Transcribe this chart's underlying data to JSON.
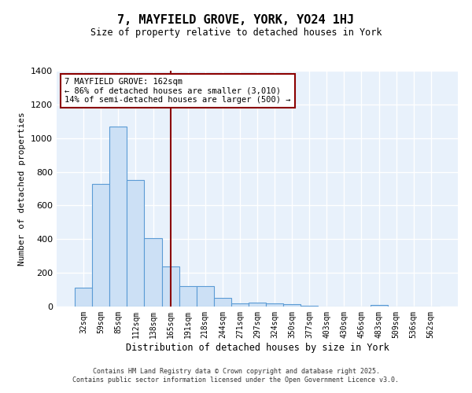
{
  "title": "7, MAYFIELD GROVE, YORK, YO24 1HJ",
  "subtitle": "Size of property relative to detached houses in York",
  "xlabel": "Distribution of detached houses by size in York",
  "ylabel": "Number of detached properties",
  "categories": [
    "32sqm",
    "59sqm",
    "85sqm",
    "112sqm",
    "138sqm",
    "165sqm",
    "191sqm",
    "218sqm",
    "244sqm",
    "271sqm",
    "297sqm",
    "324sqm",
    "350sqm",
    "377sqm",
    "403sqm",
    "430sqm",
    "456sqm",
    "483sqm",
    "509sqm",
    "536sqm",
    "562sqm"
  ],
  "values": [
    110,
    730,
    1070,
    750,
    405,
    240,
    120,
    120,
    50,
    20,
    25,
    20,
    15,
    5,
    0,
    0,
    0,
    10,
    0,
    0,
    0
  ],
  "bar_color": "#cce0f5",
  "bar_edge_color": "#5b9bd5",
  "vline_x_index": 5,
  "vline_color": "#8b0000",
  "annotation_text": "7 MAYFIELD GROVE: 162sqm\n← 86% of detached houses are smaller (3,010)\n14% of semi-detached houses are larger (500) →",
  "annotation_box_color": "white",
  "annotation_box_edge_color": "#8b0000",
  "ylim": [
    0,
    1400
  ],
  "yticks": [
    0,
    200,
    400,
    600,
    800,
    1000,
    1200,
    1400
  ],
  "background_color": "#e8f1fb",
  "grid_color": "white",
  "footer_line1": "Contains HM Land Registry data © Crown copyright and database right 2025.",
  "footer_line2": "Contains public sector information licensed under the Open Government Licence v3.0."
}
